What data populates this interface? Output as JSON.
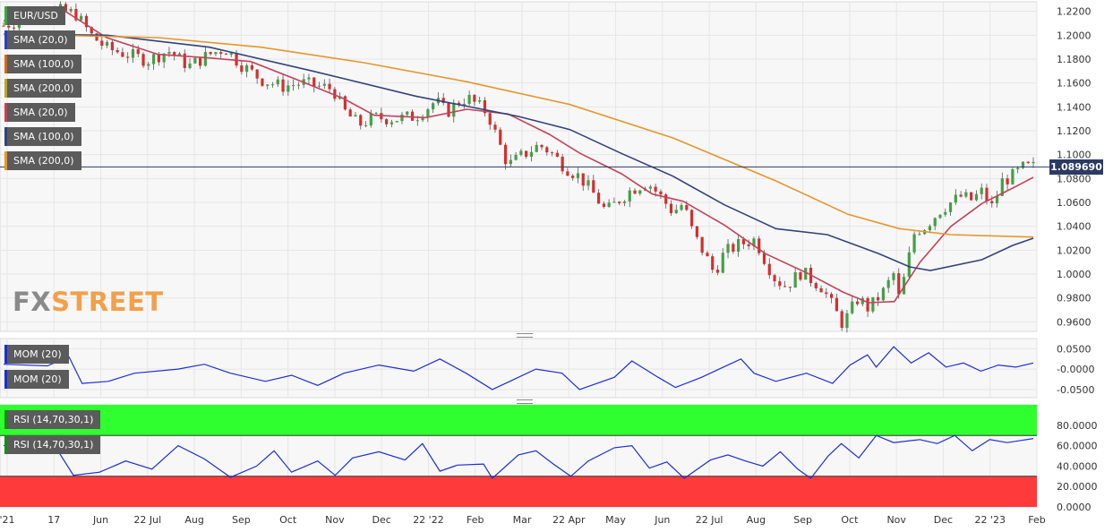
{
  "chart_data": {
    "type": "line",
    "symbol": "EUR/USD",
    "last_price": "1.089690",
    "x_labels": [
      "'21",
      "17",
      "Jun",
      "22 Jul",
      "Aug",
      "Sep",
      "Oct",
      "Nov",
      "Dec",
      "22 '22",
      "Feb",
      "Mar",
      "22 Apr",
      "May",
      "Jun",
      "22 Jul",
      "Aug",
      "Sep",
      "Oct",
      "Nov",
      "Dec",
      "22 '23",
      "Feb"
    ],
    "main": {
      "type": "candlestick",
      "y_ticks": [
        "1.2200",
        "1.2000",
        "1.1800",
        "1.1600",
        "1.1400",
        "1.1200",
        "1.1000",
        "1.0800",
        "1.0600",
        "1.0400",
        "1.0200",
        "1.0000",
        "0.9800",
        "0.9600"
      ],
      "ylim": [
        0.952,
        1.228
      ],
      "close_path": [
        [
          0,
          1.208
        ],
        [
          0.02,
          1.214
        ],
        [
          0.045,
          1.222
        ],
        [
          0.07,
          1.218
        ],
        [
          0.085,
          1.2
        ],
        [
          0.1,
          1.189
        ],
        [
          0.12,
          1.184
        ],
        [
          0.14,
          1.179
        ],
        [
          0.16,
          1.187
        ],
        [
          0.18,
          1.174
        ],
        [
          0.2,
          1.184
        ],
        [
          0.215,
          1.189
        ],
        [
          0.23,
          1.176
        ],
        [
          0.25,
          1.163
        ],
        [
          0.27,
          1.157
        ],
        [
          0.29,
          1.16
        ],
        [
          0.3,
          1.158
        ],
        [
          0.32,
          1.155
        ],
        [
          0.33,
          1.137
        ],
        [
          0.345,
          1.125
        ],
        [
          0.36,
          1.131
        ],
        [
          0.38,
          1.13
        ],
        [
          0.4,
          1.132
        ],
        [
          0.42,
          1.145
        ],
        [
          0.43,
          1.135
        ],
        [
          0.44,
          1.143
        ],
        [
          0.45,
          1.148
        ],
        [
          0.47,
          1.135
        ],
        [
          0.48,
          1.112
        ],
        [
          0.49,
          1.091
        ],
        [
          0.505,
          1.1
        ],
        [
          0.52,
          1.108
        ],
        [
          0.53,
          1.103
        ],
        [
          0.545,
          1.09
        ],
        [
          0.56,
          1.081
        ],
        [
          0.575,
          1.065
        ],
        [
          0.585,
          1.052
        ],
        [
          0.6,
          1.064
        ],
        [
          0.61,
          1.071
        ],
        [
          0.625,
          1.077
        ],
        [
          0.635,
          1.068
        ],
        [
          0.65,
          1.052
        ],
        [
          0.66,
          1.059
        ],
        [
          0.67,
          1.033
        ],
        [
          0.68,
          1.018
        ],
        [
          0.69,
          1.001
        ],
        [
          0.7,
          1.018
        ],
        [
          0.715,
          1.025
        ],
        [
          0.73,
          1.029
        ],
        [
          0.74,
          1.011
        ],
        [
          0.75,
          0.995
        ],
        [
          0.76,
          0.99
        ],
        [
          0.775,
          1.002
        ],
        [
          0.785,
          0.995
        ],
        [
          0.795,
          0.989
        ],
        [
          0.805,
          0.973
        ],
        [
          0.815,
          0.958
        ],
        [
          0.83,
          0.98
        ],
        [
          0.84,
          0.971
        ],
        [
          0.855,
          0.986
        ],
        [
          0.865,
          1.001
        ],
        [
          0.87,
          0.977
        ],
        [
          0.875,
          0.998
        ],
        [
          0.885,
          1.036
        ],
        [
          0.895,
          1.04
        ],
        [
          0.91,
          1.054
        ],
        [
          0.92,
          1.06
        ],
        [
          0.93,
          1.065
        ],
        [
          0.94,
          1.062
        ],
        [
          0.95,
          1.069
        ],
        [
          0.96,
          1.056
        ],
        [
          0.97,
          1.078
        ],
        [
          0.98,
          1.082
        ],
        [
          0.99,
          1.089
        ],
        [
          1,
          1.0897
        ]
      ],
      "series": [
        {
          "name": "SMA (20,0)",
          "color": "#c2435b",
          "values": [
            [
              0,
              1.212
            ],
            [
              0.06,
              1.22
            ],
            [
              0.1,
              1.198
            ],
            [
              0.15,
              1.184
            ],
            [
              0.2,
              1.181
            ],
            [
              0.24,
              1.178
            ],
            [
              0.29,
              1.161
            ],
            [
              0.33,
              1.147
            ],
            [
              0.36,
              1.133
            ],
            [
              0.41,
              1.131
            ],
            [
              0.45,
              1.138
            ],
            [
              0.49,
              1.134
            ],
            [
              0.53,
              1.117
            ],
            [
              0.56,
              1.101
            ],
            [
              0.6,
              1.084
            ],
            [
              0.63,
              1.067
            ],
            [
              0.66,
              1.061
            ],
            [
              0.7,
              1.041
            ],
            [
              0.74,
              1.017
            ],
            [
              0.78,
              1.001
            ],
            [
              0.815,
              0.985
            ],
            [
              0.84,
              0.976
            ],
            [
              0.865,
              0.977
            ],
            [
              0.89,
              1.01
            ],
            [
              0.92,
              1.04
            ],
            [
              0.95,
              1.059
            ],
            [
              0.98,
              1.072
            ],
            [
              1,
              1.081
            ]
          ]
        },
        {
          "name": "SMA (100,0)",
          "color": "#33437a",
          "values": [
            [
              0,
              1.201
            ],
            [
              0.1,
              1.2
            ],
            [
              0.2,
              1.19
            ],
            [
              0.3,
              1.17
            ],
            [
              0.4,
              1.149
            ],
            [
              0.5,
              1.132
            ],
            [
              0.55,
              1.121
            ],
            [
              0.6,
              1.101
            ],
            [
              0.65,
              1.082
            ],
            [
              0.7,
              1.058
            ],
            [
              0.75,
              1.038
            ],
            [
              0.8,
              1.033
            ],
            [
              0.85,
              1.017
            ],
            [
              0.88,
              1.006
            ],
            [
              0.9,
              1.003
            ],
            [
              0.95,
              1.012
            ],
            [
              0.98,
              1.024
            ],
            [
              1,
              1.03
            ]
          ]
        },
        {
          "name": "SMA (200,0)",
          "color": "#e5962a",
          "values": [
            [
              0,
              1.201
            ],
            [
              0.15,
              1.198
            ],
            [
              0.25,
              1.19
            ],
            [
              0.35,
              1.177
            ],
            [
              0.45,
              1.161
            ],
            [
              0.55,
              1.142
            ],
            [
              0.65,
              1.114
            ],
            [
              0.75,
              1.078
            ],
            [
              0.82,
              1.05
            ],
            [
              0.87,
              1.038
            ],
            [
              0.92,
              1.033
            ],
            [
              1,
              1.031
            ]
          ]
        }
      ]
    },
    "momentum": {
      "name": "MOM (20)",
      "color": "#1d2ed1",
      "y_ticks": [
        "0.0500",
        "-0.0000",
        "-0.0500"
      ],
      "ylim": [
        -0.07,
        0.075
      ],
      "values": [
        [
          0,
          0.012
        ],
        [
          0.05,
          0.008
        ],
        [
          0.075,
          0.03
        ],
        [
          0.09,
          -0.035
        ],
        [
          0.12,
          -0.03
        ],
        [
          0.15,
          -0.01
        ],
        [
          0.2,
          0.0
        ],
        [
          0.23,
          0.012
        ],
        [
          0.26,
          -0.01
        ],
        [
          0.3,
          -0.03
        ],
        [
          0.33,
          -0.015
        ],
        [
          0.36,
          -0.04
        ],
        [
          0.39,
          -0.01
        ],
        [
          0.43,
          0.01
        ],
        [
          0.47,
          -0.005
        ],
        [
          0.5,
          0.025
        ],
        [
          0.53,
          -0.01
        ],
        [
          0.56,
          -0.05
        ],
        [
          0.58,
          -0.03
        ],
        [
          0.61,
          0.0
        ],
        [
          0.64,
          -0.01
        ],
        [
          0.66,
          -0.05
        ],
        [
          0.7,
          -0.02
        ],
        [
          0.72,
          0.02
        ],
        [
          0.75,
          -0.02
        ],
        [
          0.77,
          -0.045
        ],
        [
          0.8,
          -0.02
        ],
        [
          0.82,
          0.0
        ],
        [
          0.845,
          0.025
        ],
        [
          0.86,
          -0.01
        ],
        [
          0.885,
          -0.03
        ],
        [
          0.92,
          -0.01
        ],
        [
          0.95,
          -0.035
        ],
        [
          0.97,
          0.01
        ],
        [
          0.99,
          0.035
        ],
        [
          1.0,
          0.005
        ],
        [
          1.02,
          0.055
        ],
        [
          1.04,
          0.015
        ],
        [
          1.06,
          0.04
        ],
        [
          1.08,
          0.005
        ],
        [
          1.1,
          0.015
        ],
        [
          1.12,
          -0.005
        ],
        [
          1.14,
          0.01
        ],
        [
          1.16,
          0.005
        ],
        [
          1.18,
          0.015
        ]
      ]
    },
    "rsi": {
      "name": "RSI (14,70,30,1)",
      "color": "#1d2ed1",
      "overbought_color": "#2fff2f",
      "oversold_color": "#ff3a3a",
      "levels": [
        70,
        30
      ],
      "y_ticks": [
        "80.0000",
        "60.0000",
        "40.0000",
        "20.0000",
        "0.0000"
      ],
      "ylim": [
        0,
        100
      ],
      "values": [
        [
          0,
          60
        ],
        [
          0.03,
          67
        ],
        [
          0.06,
          58
        ],
        [
          0.08,
          31
        ],
        [
          0.11,
          34
        ],
        [
          0.14,
          45
        ],
        [
          0.17,
          37
        ],
        [
          0.2,
          60
        ],
        [
          0.23,
          47
        ],
        [
          0.26,
          29
        ],
        [
          0.29,
          40
        ],
        [
          0.31,
          55
        ],
        [
          0.33,
          34
        ],
        [
          0.36,
          45
        ],
        [
          0.38,
          31
        ],
        [
          0.4,
          48
        ],
        [
          0.43,
          54
        ],
        [
          0.46,
          46
        ],
        [
          0.48,
          62
        ],
        [
          0.5,
          35
        ],
        [
          0.52,
          41
        ],
        [
          0.55,
          42
        ],
        [
          0.56,
          28
        ],
        [
          0.59,
          51
        ],
        [
          0.61,
          55
        ],
        [
          0.63,
          42
        ],
        [
          0.65,
          30
        ],
        [
          0.67,
          45
        ],
        [
          0.7,
          58
        ],
        [
          0.72,
          60
        ],
        [
          0.74,
          38
        ],
        [
          0.76,
          44
        ],
        [
          0.78,
          28
        ],
        [
          0.81,
          46
        ],
        [
          0.83,
          51
        ],
        [
          0.85,
          45
        ],
        [
          0.87,
          40
        ],
        [
          0.89,
          54
        ],
        [
          0.91,
          37
        ],
        [
          0.925,
          28
        ],
        [
          0.945,
          50
        ],
        [
          0.96,
          62
        ],
        [
          0.98,
          48
        ],
        [
          1.0,
          70
        ],
        [
          1.02,
          63
        ],
        [
          1.05,
          66
        ],
        [
          1.07,
          62
        ],
        [
          1.09,
          70
        ],
        [
          1.11,
          55
        ],
        [
          1.13,
          66
        ],
        [
          1.15,
          63
        ],
        [
          1.18,
          67
        ]
      ]
    }
  },
  "legend": {
    "price_label": "EUR/USD",
    "sma_labels": [
      "SMA (20,0)",
      "SMA (100,0)",
      "SMA (200,0)",
      "SMA (20,0)",
      "SMA (100,0)",
      "SMA (200,0)"
    ],
    "sma_colors": [
      "#2c3fc4",
      "#d0691e",
      "#b7a726",
      "#c2435b",
      "#33437a",
      "#e5962a"
    ],
    "mom_labels": [
      "MOM (20)",
      "MOM (20)"
    ],
    "rsi_labels": [
      "RSI (14,70,30,1)",
      "RSI (14,70,30,1)"
    ]
  },
  "branding": {
    "logo_prefix": "FX",
    "logo_suffix": "STREET",
    "logo_color_prefix": "#7e7e7e",
    "logo_color_suffix": "#f29b35"
  }
}
